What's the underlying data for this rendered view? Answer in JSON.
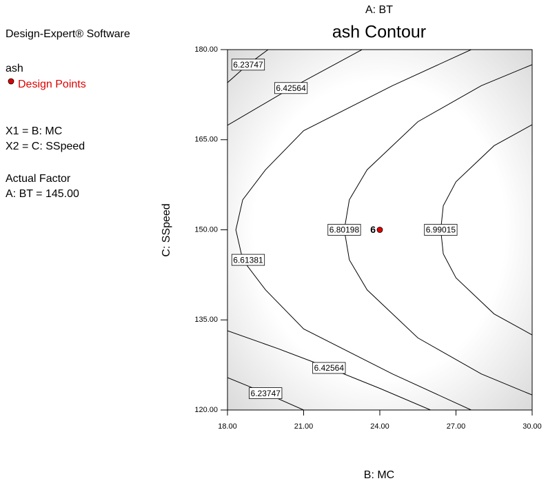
{
  "chart_data": {
    "type": "contour",
    "software": "Design-Expert® Software",
    "response": "ash",
    "legend": "Design Points",
    "factors": [
      "X1 = B: MC",
      "X2 = C: SSpeed"
    ],
    "actual_factor_heading": "Actual Factor",
    "actual_factor": "A: BT = 145.00",
    "top_label": "A: BT",
    "title": "ash Contour",
    "x_label": "B: MC",
    "y_label": "C: SSpeed",
    "xlim": [
      18,
      30
    ],
    "ylim": [
      120,
      180
    ],
    "xticks": [
      {
        "value": 18,
        "label": "18.00"
      },
      {
        "value": 21,
        "label": "21.00"
      },
      {
        "value": 24,
        "label": "24.00"
      },
      {
        "value": 27,
        "label": "27.00"
      },
      {
        "value": 30,
        "label": "30.00"
      }
    ],
    "yticks": [
      {
        "value": 120,
        "label": "120.00"
      },
      {
        "value": 135,
        "label": "135.00"
      },
      {
        "value": 150,
        "label": "150.00"
      },
      {
        "value": 165,
        "label": "165.00"
      },
      {
        "value": 180,
        "label": "180.00"
      }
    ],
    "line_color": "#000000",
    "point_color": "#e00000",
    "contours": [
      {
        "level": "6.23747",
        "x": [
          18,
          18.8,
          19.6
        ],
        "y": [
          174.5,
          177.5,
          180
        ]
      },
      {
        "level": "6.42564",
        "x": [
          18,
          20.5,
          23.3
        ],
        "y": [
          167.4,
          173.6,
          180
        ]
      },
      {
        "level": "6.61381",
        "x": [
          27.6,
          24.5,
          21,
          19.5,
          18.6,
          18.33,
          18.6,
          19.5,
          21,
          24.5,
          27.6
        ],
        "y": [
          180,
          174,
          166.5,
          160,
          155,
          150,
          145,
          140,
          133.5,
          126,
          120
        ]
      },
      {
        "level": "6.80198",
        "x": [
          30,
          28,
          25.5,
          23.5,
          22.8,
          22.6,
          22.8,
          23.5,
          25.5,
          28,
          30
        ],
        "y": [
          177.5,
          174,
          168,
          160,
          155,
          150,
          145,
          140,
          132,
          126,
          122.5
        ]
      },
      {
        "level": "6.99015",
        "x": [
          30,
          28.5,
          27,
          26.5,
          26.4,
          26.5,
          27,
          28.5,
          30
        ],
        "y": [
          167.5,
          164,
          158,
          154,
          150,
          146,
          142,
          136,
          132.5
        ]
      },
      {
        "level": "6.42564",
        "x": [
          18,
          20,
          22,
          24,
          26
        ],
        "y": [
          133.2,
          130.2,
          127,
          123.6,
          120
        ]
      },
      {
        "level": "6.23747",
        "x": [
          18,
          19.5,
          21
        ],
        "y": [
          125.4,
          122.8,
          120
        ]
      }
    ],
    "points": [
      {
        "x": 24,
        "y": 150,
        "label": "6"
      }
    ]
  }
}
